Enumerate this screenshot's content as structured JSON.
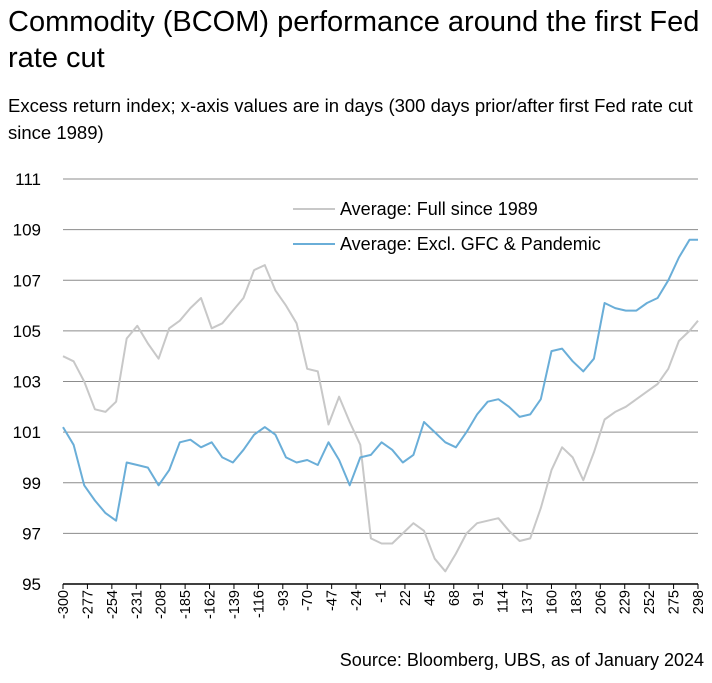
{
  "title": "Commodity (BCOM) performance around the first Fed rate cut",
  "subtitle": "Excess return index; x-axis values are in days (300 days prior/after first Fed rate cut since 1989)",
  "source": "Source: Bloomberg, UBS, as of January 2024",
  "chart_data": {
    "type": "line",
    "title": "Commodity (BCOM) performance around the first Fed rate cut",
    "xlabel": "",
    "ylabel": "",
    "xlim": [
      -300,
      298
    ],
    "ylim": [
      95,
      111
    ],
    "y_ticks": [
      95,
      97,
      99,
      101,
      103,
      105,
      107,
      109,
      111
    ],
    "x_tick_labels": [
      "-300",
      "-277",
      "-254",
      "-231",
      "-208",
      "-185",
      "-162",
      "-139",
      "-116",
      "-93",
      "-70",
      "-47",
      "-24",
      "-1",
      "22",
      "45",
      "68",
      "91",
      "114",
      "137",
      "160",
      "183",
      "206",
      "229",
      "252",
      "275",
      "298"
    ],
    "grid": "horizontal",
    "legend_position": "top-right",
    "series": [
      {
        "name": "Average: Full since 1989",
        "color": "#c8c8c8",
        "x": [
          -300,
          -290,
          -280,
          -270,
          -260,
          -250,
          -240,
          -230,
          -220,
          -210,
          -200,
          -190,
          -180,
          -170,
          -160,
          -150,
          -140,
          -130,
          -120,
          -110,
          -100,
          -90,
          -80,
          -70,
          -60,
          -50,
          -40,
          -30,
          -20,
          -10,
          0,
          10,
          20,
          30,
          40,
          50,
          60,
          70,
          80,
          90,
          100,
          110,
          120,
          130,
          140,
          150,
          160,
          170,
          180,
          190,
          200,
          210,
          220,
          230,
          240,
          250,
          260,
          270,
          280,
          290,
          298
        ],
        "values": [
          104.0,
          103.8,
          103.0,
          101.9,
          101.8,
          102.2,
          104.7,
          105.2,
          104.5,
          103.9,
          105.1,
          105.4,
          105.9,
          106.3,
          105.1,
          105.3,
          105.8,
          106.3,
          107.4,
          107.6,
          106.6,
          106.0,
          105.3,
          103.5,
          103.4,
          101.3,
          102.4,
          101.4,
          100.5,
          96.8,
          96.6,
          96.6,
          97.0,
          97.4,
          97.1,
          96.0,
          95.5,
          96.2,
          97.0,
          97.4,
          97.5,
          97.6,
          97.1,
          96.7,
          96.8,
          98.0,
          99.5,
          100.4,
          100.0,
          99.1,
          100.2,
          101.5,
          101.8,
          102.0,
          102.3,
          102.6,
          102.9,
          103.5,
          104.6,
          105.0,
          105.4
        ]
      },
      {
        "name": "Average: Excl. GFC & Pandemic",
        "color": "#6aaed8",
        "x": [
          -300,
          -290,
          -280,
          -270,
          -260,
          -250,
          -240,
          -230,
          -220,
          -210,
          -200,
          -190,
          -180,
          -170,
          -160,
          -150,
          -140,
          -130,
          -120,
          -110,
          -100,
          -90,
          -80,
          -70,
          -60,
          -50,
          -40,
          -30,
          -20,
          -10,
          0,
          10,
          20,
          30,
          40,
          50,
          60,
          70,
          80,
          90,
          100,
          110,
          120,
          130,
          140,
          150,
          160,
          170,
          180,
          190,
          200,
          210,
          220,
          230,
          240,
          250,
          260,
          270,
          280,
          290,
          298
        ],
        "values": [
          101.2,
          100.5,
          98.9,
          98.3,
          97.8,
          97.5,
          99.8,
          99.7,
          99.6,
          98.9,
          99.5,
          100.6,
          100.7,
          100.4,
          100.6,
          100.0,
          99.8,
          100.3,
          100.9,
          101.2,
          100.9,
          100.0,
          99.8,
          99.9,
          99.7,
          100.6,
          99.9,
          98.9,
          100.0,
          100.1,
          100.6,
          100.3,
          99.8,
          100.1,
          101.4,
          101.0,
          100.6,
          100.4,
          101.0,
          101.7,
          102.2,
          102.3,
          102.0,
          101.6,
          101.7,
          102.3,
          104.2,
          104.3,
          103.8,
          103.4,
          103.9,
          106.1,
          105.9,
          105.8,
          105.8,
          106.1,
          106.3,
          107.0,
          107.9,
          108.6,
          108.6
        ]
      }
    ]
  }
}
